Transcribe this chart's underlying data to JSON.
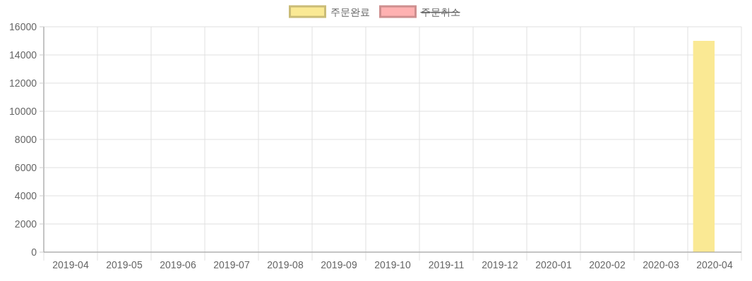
{
  "chart_data": {
    "type": "bar",
    "categories": [
      "2019-04",
      "2019-05",
      "2019-06",
      "2019-07",
      "2019-08",
      "2019-09",
      "2019-10",
      "2019-11",
      "2019-12",
      "2020-01",
      "2020-02",
      "2020-03",
      "2020-04"
    ],
    "series": [
      {
        "name": "주문완료",
        "color": "#fae994",
        "values": [
          0,
          0,
          0,
          0,
          0,
          0,
          0,
          0,
          0,
          0,
          0,
          0,
          15000
        ]
      },
      {
        "name": "주문취소",
        "color": "#ffb1b1",
        "values": [
          null,
          null,
          null,
          null,
          null,
          null,
          null,
          null,
          null,
          null,
          null,
          null,
          null
        ]
      }
    ],
    "ylim": [
      0,
      16000
    ],
    "yticks": [
      0,
      2000,
      4000,
      6000,
      8000,
      10000,
      12000,
      14000,
      16000
    ],
    "grid": true,
    "legend": "top"
  }
}
